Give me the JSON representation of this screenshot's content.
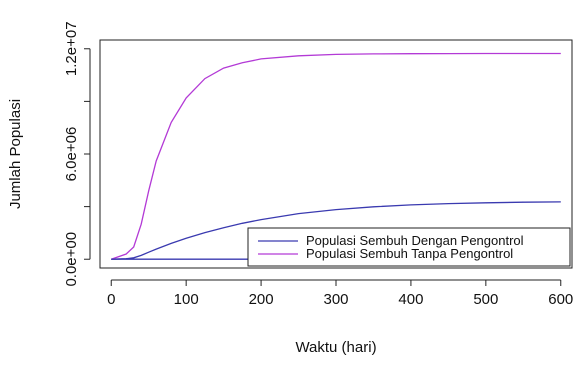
{
  "chart_data": {
    "type": "line",
    "xlabel": "Waktu (hari)",
    "ylabel": "Jumlah Populasi",
    "xlim": [
      -15,
      615
    ],
    "ylim": [
      -500000,
      12500000
    ],
    "x_ticks": [
      0,
      100,
      200,
      300,
      400,
      500,
      600
    ],
    "x_tick_labels": [
      "0",
      "100",
      "200",
      "300",
      "400",
      "500",
      "600"
    ],
    "y_ticks": [
      0,
      3000000,
      6000000,
      9000000,
      12000000
    ],
    "y_tick_labels": [
      "0.0e+00",
      "",
      "6.0e+06",
      "",
      "1.2e+07"
    ],
    "grid": false,
    "legend_position": "bottom-right",
    "x": [
      0,
      20,
      30,
      40,
      50,
      60,
      80,
      100,
      125,
      150,
      175,
      200,
      250,
      300,
      350,
      400,
      450,
      500,
      550,
      600
    ],
    "series": [
      {
        "name": "Populasi Sembuh Dengan Pengontrol",
        "color": "#3a3ab0",
        "values": [
          0,
          30000,
          80000,
          220000,
          400000,
          580000,
          900000,
          1200000,
          1520000,
          1800000,
          2050000,
          2260000,
          2600000,
          2830000,
          2990000,
          3100000,
          3170000,
          3220000,
          3250000,
          3270000
        ]
      },
      {
        "name": "Populasi Sembuh Tanpa Pengontrol",
        "color": "#b33ad6",
        "values": [
          0,
          300000,
          700000,
          2000000,
          3900000,
          5600000,
          7800000,
          9200000,
          10300000,
          10900000,
          11200000,
          11420000,
          11600000,
          11680000,
          11710000,
          11720000,
          11725000,
          11728000,
          11730000,
          11730000
        ]
      },
      {
        "name": "",
        "color": "#3a3ab0",
        "values": [
          0,
          0,
          0,
          0,
          0,
          0,
          0,
          0,
          0,
          0,
          0,
          0,
          0,
          0,
          0,
          0,
          0,
          0,
          0,
          0
        ]
      }
    ]
  }
}
